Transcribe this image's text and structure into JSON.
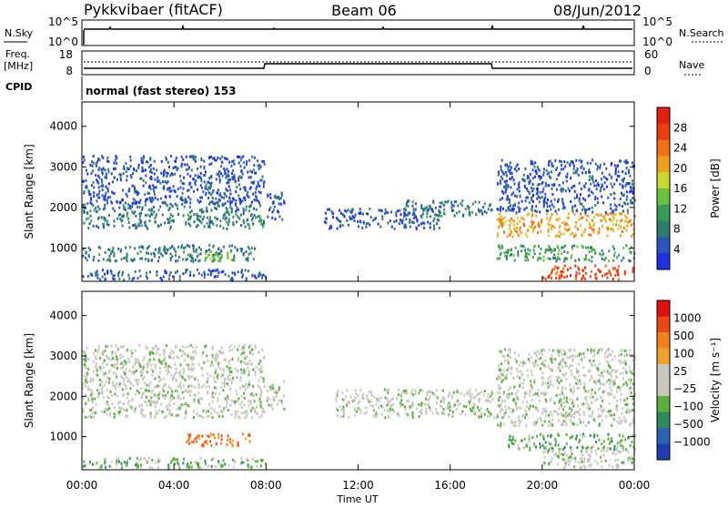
{
  "header": {
    "radar": "Pykkvibaer (fitACF)",
    "beam": "Beam 06",
    "date": "08/Jun/2012"
  },
  "status_panel": {
    "nsky_label": "N.Sky",
    "nsearch_label": "N.Search",
    "nsky_ticks": [
      "10^5",
      "10^0"
    ],
    "nsky_right_ticks": [
      "10^5",
      "10^0"
    ],
    "freq_label": "Freq.",
    "freq_unit": "[MHz]",
    "freq_ticks": [
      "18",
      "8"
    ],
    "nave_label": "Nave",
    "nave_ticks": [
      "60",
      "0"
    ],
    "cpid_label": "CPID",
    "cpid_text": "normal (fast stereo) 153"
  },
  "colors": {
    "power_scale": [
      "#2030e0",
      "#2b55b8",
      "#2e7d6b",
      "#3a9a58",
      "#6cc040",
      "#c8d830",
      "#f0a020",
      "#f07018",
      "#e84010",
      "#e02010"
    ],
    "velocity_scale": [
      "#1f3fb0",
      "#2a64b0",
      "#2e8a5c",
      "#5cb040",
      "#c8c8c0",
      "#c8c8c0",
      "#f0a030",
      "#f08020",
      "#e84818",
      "#e01010"
    ]
  },
  "chart_data": [
    {
      "type": "heatmap",
      "panel": "power",
      "x_unit": "hours UT",
      "xlim": [
        0,
        24
      ],
      "ylim": [
        180,
        4600
      ],
      "ylabel": "Slant Range [km]",
      "xlabel": "",
      "x_ticks": [
        "00:00",
        "04:00",
        "08:00",
        "12:00",
        "16:00",
        "20:00",
        "00:00"
      ],
      "y_ticks": [
        "1000",
        "2000",
        "3000",
        "4000"
      ],
      "y_tick_values": [
        1000,
        2000,
        3000,
        4000
      ],
      "colorbar_label": "Power [dB]",
      "colorbar_ticks": [
        "28",
        "24",
        "20",
        "16",
        "12",
        "8",
        "4"
      ],
      "scatter_regions": [
        {
          "t0": 0,
          "t1": 7.9,
          "r0": 1500,
          "r1": 2100,
          "level": 2
        },
        {
          "t0": 0,
          "t1": 7.9,
          "r0": 2100,
          "r1": 3300,
          "level": 1
        },
        {
          "t0": 0,
          "t1": 7.5,
          "r0": 700,
          "r1": 1100,
          "level": 2
        },
        {
          "t0": 0,
          "t1": 8,
          "r0": 250,
          "r1": 500,
          "level": 1
        },
        {
          "t0": 5,
          "t1": 6.5,
          "r0": 700,
          "r1": 950,
          "level": 4
        },
        {
          "t0": 8,
          "t1": 8.8,
          "r0": 1700,
          "r1": 2400,
          "level": 1
        },
        {
          "t0": 10.5,
          "t1": 15.5,
          "r0": 1500,
          "r1": 2000,
          "level": 1
        },
        {
          "t0": 14,
          "t1": 17.9,
          "r0": 1800,
          "r1": 2200,
          "level": 2
        },
        {
          "t0": 18,
          "t1": 24,
          "r0": 1300,
          "r1": 1900,
          "level": 6
        },
        {
          "t0": 18,
          "t1": 24,
          "r0": 1900,
          "r1": 3200,
          "level": 1
        },
        {
          "t0": 18,
          "t1": 24,
          "r0": 700,
          "r1": 1100,
          "level": 3
        },
        {
          "t0": 20,
          "t1": 24,
          "r0": 250,
          "r1": 600,
          "level": 8
        }
      ]
    },
    {
      "type": "heatmap",
      "panel": "velocity",
      "x_unit": "hours UT",
      "xlim": [
        0,
        24
      ],
      "ylim": [
        180,
        4600
      ],
      "ylabel": "Slant Range [km]",
      "xlabel": "Time UT",
      "x_ticks": [
        "00:00",
        "04:00",
        "08:00",
        "12:00",
        "16:00",
        "20:00",
        "00:00"
      ],
      "y_ticks": [
        "1000",
        "2000",
        "3000",
        "4000"
      ],
      "y_tick_values": [
        1000,
        2000,
        3000,
        4000
      ],
      "colorbar_label": "Velocity [m s⁻¹]",
      "colorbar_ticks": [
        "1000",
        "500",
        "100",
        "25",
        "−25",
        "−100",
        "−500",
        "−1000"
      ],
      "scatter_regions": [
        {
          "t0": 0,
          "t1": 7.9,
          "r0": 1500,
          "r1": 2300,
          "level": 4
        },
        {
          "t0": 0,
          "t1": 7.9,
          "r0": 2300,
          "r1": 3300,
          "level": 4
        },
        {
          "t0": 4.5,
          "t1": 7.5,
          "r0": 800,
          "r1": 1100,
          "level": 7
        },
        {
          "t0": 0,
          "t1": 8,
          "r0": 250,
          "r1": 500,
          "level": 3
        },
        {
          "t0": 8,
          "t1": 8.8,
          "r0": 1700,
          "r1": 2400,
          "level": 4
        },
        {
          "t0": 11,
          "t1": 17.9,
          "r0": 1500,
          "r1": 2200,
          "level": 4
        },
        {
          "t0": 18,
          "t1": 24,
          "r0": 1300,
          "r1": 2000,
          "level": 4
        },
        {
          "t0": 18,
          "t1": 24,
          "r0": 2000,
          "r1": 3200,
          "level": 4
        },
        {
          "t0": 18.5,
          "t1": 24,
          "r0": 700,
          "r1": 1100,
          "level": 3
        },
        {
          "t0": 20,
          "t1": 24,
          "r0": 250,
          "r1": 700,
          "level": 4
        }
      ]
    }
  ]
}
